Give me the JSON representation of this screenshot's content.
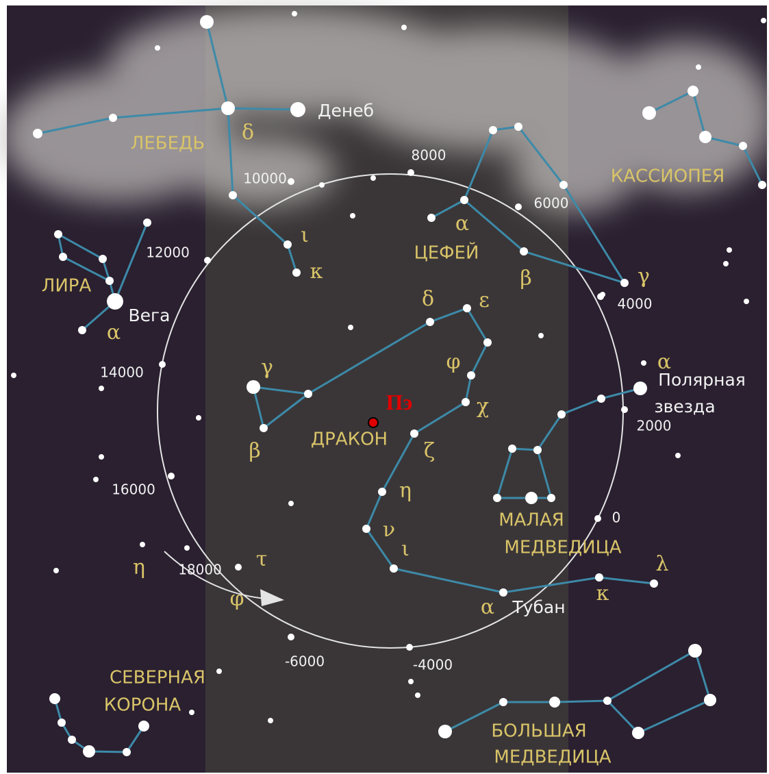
{
  "constellations": [
    "ЛЕБЕДЬ",
    "КАССИОПЕЯ",
    "ЛИРА",
    "ЦЕФЕЙ",
    "ДРАКОН",
    "МАЛАЯ",
    "МЕДВЕДИЦА",
    "СЕВЕРНАЯ",
    "КОРОНА",
    "БОЛЬШАЯ",
    "МЕДВЕДИЦА"
  ],
  "star_names": [
    "Денеб",
    "Вега",
    "Полярная",
    "звезда",
    "Тубан"
  ],
  "greek_letters": [
    "δ",
    "ι",
    "κ",
    "α",
    "β",
    "γ",
    "α",
    "γ",
    "β",
    "δ",
    "ε",
    "φ",
    "χ",
    "ζ",
    "η",
    "ν",
    "ι",
    "α",
    "κ",
    "λ",
    "η",
    "τ",
    "φ",
    "α"
  ],
  "years": [
    "8000",
    "6000",
    "4000",
    "2000",
    "0",
    "-4000",
    "-6000",
    "18000",
    "16000",
    "14000",
    "12000",
    "10000"
  ],
  "pole_label": "Пэ"
}
